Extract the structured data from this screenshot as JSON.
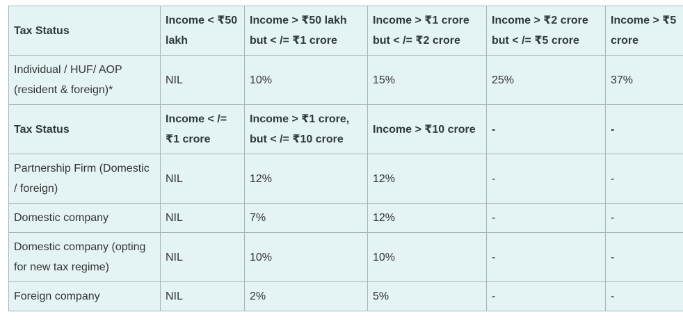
{
  "table": {
    "sections": [
      {
        "header": [
          "Tax Status",
          "Income < ₹50 lakh",
          "Income > ₹50 lakh but < /= ₹1 crore",
          "Income > ₹1 crore but < /= ₹2 crore",
          "Income > ₹2 crore but < /= ₹5 crore",
          "Income > ₹5 crore"
        ],
        "rows": [
          [
            "Individual / HUF/ AOP (resident & foreign)*",
            "NIL",
            "10%",
            "15%",
            "25%",
            "37%"
          ]
        ]
      },
      {
        "header": [
          "Tax Status",
          "Income < /= ₹1 crore",
          "Income > ₹1 crore, but < /= ₹10 crore",
          "Income > ₹10 crore",
          "-",
          "-"
        ],
        "rows": [
          [
            "Partnership Firm (Domestic / foreign)",
            "NIL",
            "12%",
            "12%",
            "-",
            "-"
          ],
          [
            "Domestic company",
            "NIL",
            "7%",
            "12%",
            "-",
            "-"
          ],
          [
            "Domestic company (opting for new tax regime)",
            "NIL",
            "10%",
            "10%",
            "-",
            "-"
          ],
          [
            "Foreign company",
            "NIL",
            "2%",
            "5%",
            "-",
            "-"
          ]
        ]
      }
    ]
  }
}
